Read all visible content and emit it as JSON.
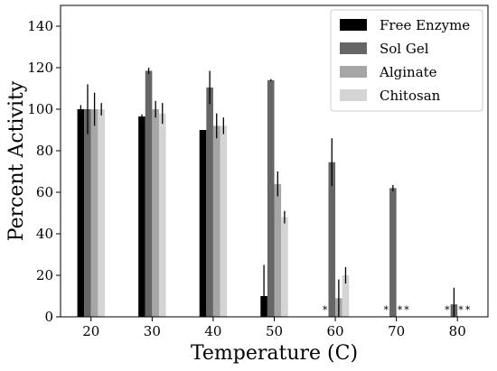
{
  "chart_data": {
    "type": "bar",
    "xlabel": "Temperature (C)",
    "ylabel": "Percent Activity",
    "ylim": [
      0,
      150
    ],
    "yticks": [
      0,
      20,
      40,
      60,
      80,
      100,
      120,
      140
    ],
    "categories": [
      "20",
      "30",
      "40",
      "50",
      "60",
      "70",
      "80"
    ],
    "grid": false,
    "legend_position": "top-right",
    "series": [
      {
        "name": "Free Enzyme",
        "color": "#000000",
        "values": [
          100,
          96.5,
          90,
          10,
          0,
          0,
          0
        ],
        "errors": [
          2,
          1,
          0,
          15,
          0,
          0,
          0
        ]
      },
      {
        "name": "Sol Gel",
        "color": "#666666",
        "values": [
          100,
          118.5,
          110.5,
          114,
          74.5,
          62,
          6
        ],
        "errors": [
          12,
          1.5,
          8,
          0.5,
          11.5,
          1.5,
          8
        ]
      },
      {
        "name": "Alginate",
        "color": "#a6a6a6",
        "values": [
          100,
          100,
          92,
          64,
          9,
          0,
          0
        ],
        "errors": [
          8,
          4,
          6,
          6,
          9,
          0,
          0
        ]
      },
      {
        "name": "Chitosan",
        "color": "#d4d4d4",
        "values": [
          100,
          98,
          92,
          48,
          20,
          0,
          0
        ],
        "errors": [
          3,
          5,
          4,
          3,
          4,
          0,
          0
        ]
      }
    ],
    "asterisks": [
      {
        "category": "60",
        "series": "Free Enzyme"
      },
      {
        "category": "70",
        "series": "Free Enzyme"
      },
      {
        "category": "70",
        "series": "Alginate"
      },
      {
        "category": "70",
        "series": "Chitosan"
      },
      {
        "category": "80",
        "series": "Free Enzyme"
      },
      {
        "category": "80",
        "series": "Alginate"
      },
      {
        "category": "80",
        "series": "Chitosan"
      }
    ],
    "asterisk_symbol": "*"
  }
}
